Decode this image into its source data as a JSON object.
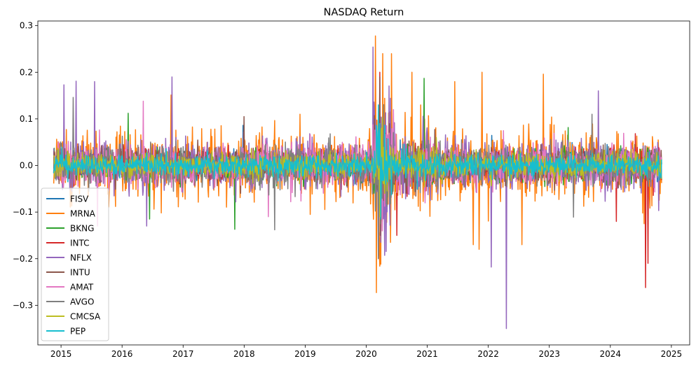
{
  "chart_data": {
    "type": "line",
    "title": "NASDAQ Return",
    "xlabel": "",
    "ylabel": "",
    "xlim": [
      2014.62,
      2025.3
    ],
    "ylim": [
      -0.385,
      0.31
    ],
    "x_ticks": [
      2015,
      2016,
      2017,
      2018,
      2019,
      2020,
      2021,
      2022,
      2023,
      2024,
      2025
    ],
    "x_tick_labels": [
      "2015",
      "2016",
      "2017",
      "2018",
      "2019",
      "2020",
      "2021",
      "2022",
      "2023",
      "2024",
      "2025"
    ],
    "y_ticks": [
      -0.3,
      -0.2,
      -0.1,
      0.0,
      0.1,
      0.2,
      0.3
    ],
    "y_tick_labels": [
      "−0.3",
      "−0.2",
      "−0.1",
      "0.0",
      "0.1",
      "0.2",
      "0.3"
    ],
    "x_start": 2014.88,
    "x_end": 2024.84,
    "legend_position": "lower-left",
    "grid": false,
    "series": [
      {
        "name": "FISV",
        "color": "#1f77b4",
        "volatility": 0.014,
        "seed": 11,
        "spikes": [
          [
            2020.22,
            -0.09
          ],
          [
            2020.25,
            0.08
          ]
        ]
      },
      {
        "name": "MRNA",
        "color": "#ff7f0e",
        "volatility": 0.035,
        "seed": 23,
        "spikes": [
          [
            2020.15,
            0.278
          ],
          [
            2020.27,
            0.24
          ],
          [
            2020.75,
            0.2
          ],
          [
            2021.45,
            0.18
          ],
          [
            2021.9,
            0.2
          ],
          [
            2022.9,
            0.196
          ],
          [
            2021.75,
            -0.17
          ],
          [
            2021.85,
            -0.18
          ],
          [
            2022.55,
            -0.17
          ],
          [
            2020.4,
            -0.165
          ],
          [
            2024.55,
            -0.125
          ]
        ]
      },
      {
        "name": "BKNG",
        "color": "#2ca02c",
        "volatility": 0.015,
        "seed": 37,
        "spikes": [
          [
            2016.1,
            0.112
          ],
          [
            2016.45,
            -0.115
          ],
          [
            2017.85,
            -0.137
          ],
          [
            2020.95,
            0.187
          ],
          [
            2020.23,
            -0.1
          ]
        ]
      },
      {
        "name": "INTC",
        "color": "#d62728",
        "volatility": 0.017,
        "seed": 41,
        "spikes": [
          [
            2020.22,
            0.2
          ],
          [
            2024.58,
            -0.262
          ],
          [
            2024.62,
            -0.21
          ],
          [
            2020.5,
            -0.15
          ],
          [
            2024.1,
            -0.12
          ]
        ]
      },
      {
        "name": "NFLX",
        "color": "#9467bd",
        "volatility": 0.026,
        "seed": 53,
        "spikes": [
          [
            2015.05,
            0.173
          ],
          [
            2015.25,
            0.181
          ],
          [
            2015.55,
            0.18
          ],
          [
            2016.82,
            0.19
          ],
          [
            2022.3,
            -0.35
          ],
          [
            2022.05,
            -0.218
          ],
          [
            2020.2,
            -0.2
          ],
          [
            2016.4,
            -0.13
          ],
          [
            2023.8,
            0.16
          ]
        ]
      },
      {
        "name": "INTU",
        "color": "#8c564b",
        "volatility": 0.016,
        "seed": 67,
        "spikes": [
          [
            2020.22,
            0.19
          ],
          [
            2018.0,
            0.105
          ],
          [
            2020.23,
            -0.15
          ]
        ]
      },
      {
        "name": "AMAT",
        "color": "#e377c2",
        "volatility": 0.022,
        "seed": 71,
        "spikes": [
          [
            2016.35,
            0.138
          ],
          [
            2018.4,
            -0.11
          ],
          [
            2020.2,
            -0.15
          ],
          [
            2015.6,
            -0.13
          ]
        ]
      },
      {
        "name": "AVGO",
        "color": "#7f7f7f",
        "volatility": 0.02,
        "seed": 83,
        "spikes": [
          [
            2015.2,
            0.146
          ],
          [
            2018.5,
            -0.138
          ],
          [
            2020.2,
            -0.2
          ],
          [
            2023.7,
            0.11
          ]
        ]
      },
      {
        "name": "CMCSA",
        "color": "#bcbd22",
        "volatility": 0.013,
        "seed": 97,
        "spikes": [
          [
            2020.22,
            -0.11
          ],
          [
            2020.25,
            0.08
          ]
        ]
      },
      {
        "name": "PEP",
        "color": "#17becf",
        "volatility": 0.011,
        "seed": 101,
        "spikes": [
          [
            2020.2,
            0.13
          ],
          [
            2020.24,
            -0.115
          ],
          [
            2020.22,
            0.09
          ]
        ]
      }
    ]
  }
}
